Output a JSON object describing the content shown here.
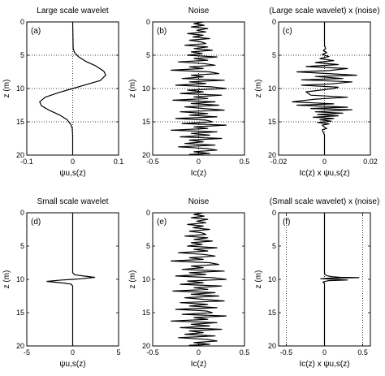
{
  "chart_data": [
    {
      "type": "line",
      "panel": "(a)",
      "title": "Large scale wavelet",
      "xlabel": "ψu,s(z)",
      "ylabel": "z (m)",
      "xlim": [
        -0.1,
        0.1
      ],
      "ylim": [
        0,
        20
      ],
      "y_reversed": true,
      "xticks": [
        "-0.1",
        "0",
        "0.1"
      ],
      "yticks": [
        "0",
        "5",
        "10",
        "15",
        "20"
      ],
      "grid": "dotted",
      "series": [
        {
          "x": [
            0,
            0.001,
            0.004,
            0.012,
            0.028,
            0.05,
            0.068,
            0.072,
            0.06,
            0.03,
            0,
            -0.03,
            -0.06,
            -0.072,
            -0.068,
            -0.05,
            -0.028,
            -0.012,
            -0.004,
            -0.001,
            0,
            0
          ],
          "y": [
            0,
            4.0,
            4.6,
            5.2,
            5.9,
            6.6,
            7.4,
            8.0,
            8.8,
            9.4,
            10.0,
            10.6,
            11.3,
            12.0,
            12.6,
            13.3,
            14.0,
            14.7,
            15.4,
            16.0,
            17.0,
            20
          ]
        }
      ]
    },
    {
      "type": "line",
      "panel": "(b)",
      "title": "Noise",
      "xlabel": "Ic(z)",
      "ylabel": "z (m)",
      "xlim": [
        -0.5,
        0.5
      ],
      "ylim": [
        0,
        20
      ],
      "y_reversed": true,
      "xticks": [
        "-0.5",
        "0",
        "0.5"
      ],
      "yticks": [
        "0",
        "5",
        "10",
        "15",
        "20"
      ],
      "grid": "dotted",
      "series": [
        {
          "x": [
            0.05,
            -0.05,
            0.06,
            -0.08,
            0.1,
            -0.02,
            0.08,
            -0.12,
            0.05,
            -0.06,
            0.12,
            -0.1,
            0.03,
            0.08,
            -0.15,
            0.1,
            -0.05,
            0.15,
            -0.08,
            0.04,
            -0.12,
            0.2,
            -0.05,
            0.1,
            -0.22,
            0.06,
            0.18,
            -0.1,
            0.05,
            -0.3,
            0.12,
            0.22,
            -0.08,
            0.05,
            -0.18,
            0.28,
            -0.1,
            0.08,
            -0.25,
            0.15,
            0.3,
            -0.12,
            0.05,
            -0.2,
            0.25,
            -0.05,
            0.1,
            -0.28,
            0.18,
            -0.08,
            0.22,
            -0.15,
            0.05,
            0.28,
            -0.2,
            0.1,
            -0.1,
            0.2,
            -0.25,
            0.08,
            0.15,
            -0.18,
            0.3,
            -0.05,
            0.1,
            -0.3,
            0.2,
            -0.08,
            0.12,
            -0.2,
            0.25,
            -0.1,
            0.05,
            -0.15,
            0.18,
            -0.22,
            0.08,
            0.2,
            -0.05,
            0.12,
            -0.1,
            0.05
          ],
          "y": [
            0,
            0.25,
            0.5,
            0.75,
            1.0,
            1.25,
            1.5,
            1.75,
            2.0,
            2.25,
            2.5,
            2.75,
            3.0,
            3.25,
            3.5,
            3.75,
            4.0,
            4.25,
            4.5,
            4.75,
            5.0,
            5.25,
            5.5,
            5.75,
            6.0,
            6.25,
            6.5,
            6.75,
            7.0,
            7.25,
            7.5,
            7.75,
            8.0,
            8.25,
            8.5,
            8.75,
            9.0,
            9.25,
            9.5,
            9.75,
            10.0,
            10.25,
            10.5,
            10.75,
            11.0,
            11.25,
            11.5,
            11.75,
            12.0,
            12.25,
            12.5,
            12.75,
            13.0,
            13.25,
            13.5,
            13.75,
            14.0,
            14.25,
            14.5,
            14.75,
            15.0,
            15.25,
            15.5,
            15.75,
            16.0,
            16.25,
            16.5,
            16.75,
            17.0,
            17.25,
            17.5,
            17.75,
            18.0,
            18.25,
            18.5,
            18.75,
            19.0,
            19.25,
            19.5,
            19.75,
            19.9,
            20
          ]
        }
      ]
    },
    {
      "type": "line",
      "panel": "(c)",
      "title": "(Large scale wavelet) x (noise)",
      "xlabel": "Ic(z) x ψu,s(z)",
      "ylabel": "z (m)",
      "xlim": [
        -0.02,
        0.02
      ],
      "ylim": [
        0,
        20
      ],
      "y_reversed": true,
      "xticks": [
        "-0.02",
        "0",
        "0.02"
      ],
      "yticks": [
        "0",
        "5",
        "10",
        "15",
        "20"
      ],
      "grid": "dotted",
      "series": [
        {
          "x": [
            0,
            0,
            0.0005,
            -0.0005,
            0.001,
            -0.001,
            0.002,
            -0.002,
            0.004,
            -0.004,
            0.006,
            -0.008,
            0.01,
            0.002,
            -0.012,
            0.004,
            0.014,
            -0.004,
            0.008,
            -0.01,
            0.012,
            0.003,
            -0.01,
            0.006,
            0.004,
            -0.008,
            -0.006,
            0.01,
            -0.004,
            -0.014,
            0.004,
            -0.012,
            0.01,
            -0.006,
            0.012,
            -0.004,
            0.008,
            -0.003,
            0.006,
            -0.005,
            0.004,
            -0.002,
            0.003,
            -0.003,
            0.002,
            -0.001,
            0,
            0.001,
            -0.001,
            0,
            0
          ],
          "y": [
            0,
            3.5,
            4.0,
            4.3,
            4.6,
            4.9,
            5.2,
            5.5,
            5.8,
            6.1,
            6.4,
            6.7,
            7.0,
            7.3,
            7.5,
            7.8,
            8.0,
            8.2,
            8.5,
            8.7,
            9.0,
            9.3,
            9.5,
            9.8,
            10.0,
            10.5,
            11.0,
            11.3,
            11.6,
            12.0,
            12.3,
            12.5,
            12.8,
            13.0,
            13.2,
            13.5,
            13.7,
            13.9,
            14.1,
            14.3,
            14.5,
            14.7,
            14.9,
            15.1,
            15.3,
            15.5,
            15.8,
            16.0,
            16.2,
            17.0,
            20
          ]
        }
      ]
    },
    {
      "type": "line",
      "panel": "(d)",
      "title": "Small scale wavelet",
      "xlabel": "ψu,s(z)",
      "ylabel": "z (m)",
      "xlim": [
        -5,
        5
      ],
      "ylim": [
        0,
        20
      ],
      "y_reversed": true,
      "xticks": [
        "-5",
        "0",
        "5"
      ],
      "yticks": [
        "0",
        "5",
        "10",
        "15",
        "20"
      ],
      "grid": "none",
      "series": [
        {
          "x": [
            0,
            0,
            0.2,
            1.2,
            2.4,
            1.0,
            0,
            -1.2,
            -2.8,
            -1.4,
            -0.2,
            0,
            0
          ],
          "y": [
            0,
            9.0,
            9.3,
            9.5,
            9.7,
            9.9,
            10.0,
            10.1,
            10.3,
            10.5,
            10.7,
            11.0,
            20
          ]
        }
      ]
    },
    {
      "type": "line",
      "panel": "(e)",
      "title": "Noise",
      "xlabel": "Ic(z)",
      "ylabel": "z (m)",
      "xlim": [
        -0.5,
        0.5
      ],
      "ylim": [
        0,
        20
      ],
      "y_reversed": true,
      "xticks": [
        "-0.5",
        "0",
        "0.5"
      ],
      "yticks": [
        "0",
        "5",
        "10",
        "15",
        "20"
      ],
      "grid": "none",
      "series": [
        {
          "x": [
            0.05,
            -0.05,
            0.06,
            -0.08,
            0.1,
            -0.02,
            0.08,
            -0.12,
            0.05,
            -0.06,
            0.12,
            -0.1,
            0.03,
            0.08,
            -0.15,
            0.1,
            -0.05,
            0.15,
            -0.08,
            0.04,
            -0.12,
            0.2,
            -0.05,
            0.1,
            -0.22,
            0.06,
            0.18,
            -0.1,
            0.05,
            -0.3,
            0.12,
            0.22,
            -0.08,
            0.05,
            -0.18,
            0.28,
            -0.1,
            0.08,
            -0.25,
            0.15,
            0.3,
            -0.12,
            0.05,
            -0.2,
            0.25,
            -0.05,
            0.1,
            -0.28,
            0.18,
            -0.08,
            0.22,
            -0.15,
            0.05,
            0.28,
            -0.2,
            0.1,
            -0.1,
            0.2,
            -0.25,
            0.08,
            0.15,
            -0.18,
            0.3,
            -0.05,
            0.1,
            -0.3,
            0.2,
            -0.08,
            0.12,
            -0.2,
            0.25,
            -0.1,
            0.05,
            -0.15,
            0.18,
            -0.22,
            0.08,
            0.2,
            -0.05,
            0.12,
            -0.1,
            0.05
          ],
          "y": [
            0,
            0.25,
            0.5,
            0.75,
            1.0,
            1.25,
            1.5,
            1.75,
            2.0,
            2.25,
            2.5,
            2.75,
            3.0,
            3.25,
            3.5,
            3.75,
            4.0,
            4.25,
            4.5,
            4.75,
            5.0,
            5.25,
            5.5,
            5.75,
            6.0,
            6.25,
            6.5,
            6.75,
            7.0,
            7.25,
            7.5,
            7.75,
            8.0,
            8.25,
            8.5,
            8.75,
            9.0,
            9.25,
            9.5,
            9.75,
            10.0,
            10.25,
            10.5,
            10.75,
            11.0,
            11.25,
            11.5,
            11.75,
            12.0,
            12.25,
            12.5,
            12.75,
            13.0,
            13.25,
            13.5,
            13.75,
            14.0,
            14.25,
            14.5,
            14.75,
            15.0,
            15.25,
            15.5,
            15.75,
            16.0,
            16.25,
            16.5,
            16.75,
            17.0,
            17.25,
            17.5,
            17.75,
            18.0,
            18.25,
            18.5,
            18.75,
            19.0,
            19.25,
            19.5,
            19.75,
            19.9,
            20
          ]
        }
      ]
    },
    {
      "type": "line",
      "panel": "(f)",
      "title": "(Small scale wavelet) x (noise)",
      "xlabel": "Ic(z) x ψu,s(z)",
      "ylabel": "z (m)",
      "xlim": [
        -0.6,
        0.6
      ],
      "ylim": [
        0,
        20
      ],
      "y_reversed": true,
      "xticks": [
        "-0.5",
        "0",
        "0.5"
      ],
      "xtick_values": [
        -0.5,
        0,
        0.5
      ],
      "yticks": [
        "0",
        "5",
        "10",
        "15",
        "20"
      ],
      "grid": "dotted-vertical",
      "series": [
        {
          "x": [
            0,
            0,
            0.02,
            0.05,
            0.1,
            0.2,
            0.45,
            0.1,
            -0.05,
            0.15,
            0.3,
            0.05,
            -0.02,
            0,
            0
          ],
          "y": [
            0,
            9.2,
            9.4,
            9.5,
            9.6,
            9.7,
            9.75,
            9.8,
            9.9,
            10.0,
            10.1,
            10.2,
            10.4,
            10.6,
            20
          ]
        }
      ]
    }
  ]
}
